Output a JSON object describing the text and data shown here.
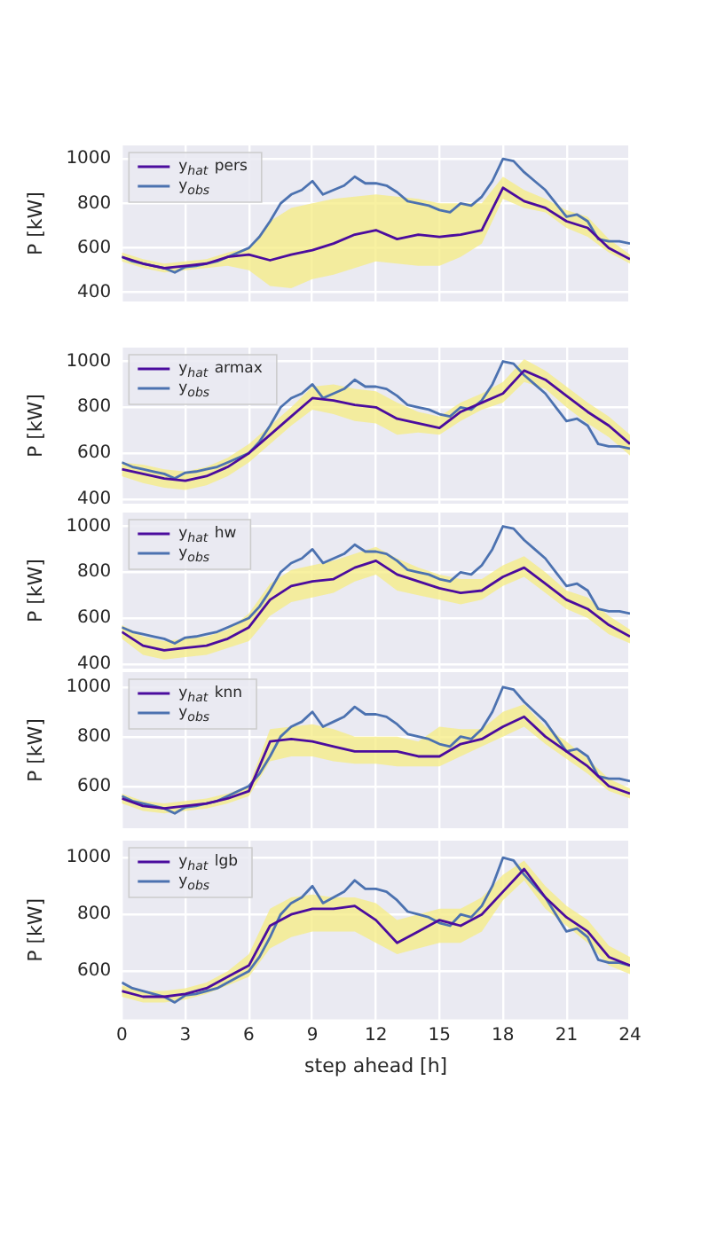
{
  "chart_data": [
    {
      "type": "line",
      "ylabel": "P [kW]",
      "x": [
        0,
        1,
        2,
        3,
        4,
        5,
        6,
        7,
        8,
        9,
        10,
        11,
        12,
        13,
        14,
        15,
        16,
        17,
        18,
        19,
        20,
        21,
        22,
        23,
        24
      ],
      "xlim": [
        0,
        24
      ],
      "xticks": [
        0,
        3,
        6,
        9,
        12,
        15,
        18,
        21,
        24
      ],
      "ylim": [
        360,
        1060
      ],
      "yticks": [
        400,
        600,
        800,
        1000
      ],
      "grid": true,
      "legend": "top left",
      "tick_labels": "y",
      "line_style": "solid",
      "marker": "none",
      "series": [
        {
          "name": "y$_{hat}$ pers",
          "color": "#4b0c9e",
          "values": [
            560,
            530,
            510,
            520,
            530,
            560,
            570,
            545,
            570,
            590,
            620,
            660,
            680,
            640,
            660,
            650,
            660,
            680,
            870,
            810,
            780,
            720,
            690,
            600,
            550
          ],
          "lower": [
            540,
            510,
            490,
            500,
            510,
            520,
            500,
            430,
            420,
            460,
            480,
            510,
            540,
            530,
            520,
            520,
            560,
            620,
            820,
            780,
            760,
            690,
            650,
            580,
            530
          ],
          "upper": [
            580,
            550,
            530,
            540,
            550,
            580,
            600,
            720,
            780,
            800,
            820,
            830,
            840,
            830,
            820,
            800,
            800,
            800,
            920,
            860,
            820,
            770,
            740,
            640,
            570
          ]
        },
        {
          "name": "y$_{obs}$",
          "color": "#4c72b0",
          "x": [
            0,
            0.5,
            1,
            1.5,
            2,
            2.5,
            3,
            3.5,
            4,
            4.5,
            5,
            5.5,
            6,
            6.5,
            7,
            7.5,
            8,
            8.5,
            9,
            9.5,
            10,
            10.5,
            11,
            11.5,
            12,
            12.5,
            13,
            13.5,
            14,
            14.5,
            15,
            15.5,
            16,
            16.5,
            17,
            17.5,
            18,
            18.5,
            19,
            19.5,
            20,
            20.5,
            21,
            21.5,
            22,
            22.5,
            23,
            23.5,
            24
          ],
          "values": [
            560,
            540,
            530,
            520,
            510,
            490,
            515,
            520,
            530,
            540,
            560,
            580,
            600,
            650,
            720,
            800,
            840,
            860,
            900,
            840,
            860,
            880,
            920,
            890,
            890,
            880,
            850,
            810,
            800,
            790,
            770,
            760,
            800,
            790,
            830,
            900,
            1000,
            990,
            940,
            900,
            860,
            800,
            740,
            750,
            720,
            640,
            630,
            630,
            620
          ]
        }
      ]
    },
    {
      "type": "line",
      "ylabel": "P [kW]",
      "x": [
        0,
        1,
        2,
        3,
        4,
        5,
        6,
        7,
        8,
        9,
        10,
        11,
        12,
        13,
        14,
        15,
        16,
        17,
        18,
        19,
        20,
        21,
        22,
        23,
        24
      ],
      "xlim": [
        0,
        24
      ],
      "xticks": [
        0,
        3,
        6,
        9,
        12,
        15,
        18,
        21,
        24
      ],
      "ylim": [
        380,
        1060
      ],
      "yticks": [
        400,
        600,
        800,
        1000
      ],
      "grid": true,
      "legend": "top left",
      "tick_labels": "y",
      "line_style": "solid",
      "marker": "none",
      "series": [
        {
          "name": "y$_{hat}$ armax",
          "color": "#4b0c9e",
          "values": [
            530,
            510,
            490,
            480,
            500,
            540,
            600,
            680,
            760,
            840,
            830,
            810,
            800,
            750,
            730,
            710,
            780,
            820,
            860,
            960,
            920,
            850,
            780,
            720,
            640
          ],
          "lower": [
            500,
            470,
            450,
            440,
            460,
            500,
            560,
            640,
            720,
            790,
            770,
            740,
            730,
            680,
            690,
            680,
            740,
            790,
            820,
            910,
            880,
            800,
            730,
            670,
            590
          ],
          "upper": [
            560,
            550,
            530,
            520,
            540,
            580,
            640,
            720,
            800,
            890,
            900,
            880,
            870,
            820,
            780,
            760,
            820,
            860,
            910,
            1010,
            960,
            890,
            820,
            760,
            680
          ]
        },
        {
          "name": "y$_{obs}$",
          "color": "#4c72b0",
          "x": [
            0,
            0.5,
            1,
            1.5,
            2,
            2.5,
            3,
            3.5,
            4,
            4.5,
            5,
            5.5,
            6,
            6.5,
            7,
            7.5,
            8,
            8.5,
            9,
            9.5,
            10,
            10.5,
            11,
            11.5,
            12,
            12.5,
            13,
            13.5,
            14,
            14.5,
            15,
            15.5,
            16,
            16.5,
            17,
            17.5,
            18,
            18.5,
            19,
            19.5,
            20,
            20.5,
            21,
            21.5,
            22,
            22.5,
            23,
            23.5,
            24
          ],
          "values": [
            560,
            540,
            530,
            520,
            510,
            490,
            515,
            520,
            530,
            540,
            560,
            580,
            600,
            650,
            720,
            800,
            840,
            860,
            900,
            840,
            860,
            880,
            920,
            890,
            890,
            880,
            850,
            810,
            800,
            790,
            770,
            760,
            800,
            790,
            830,
            900,
            1000,
            990,
            940,
            900,
            860,
            800,
            740,
            750,
            720,
            640,
            630,
            630,
            620
          ]
        }
      ]
    },
    {
      "type": "line",
      "ylabel": "P [kW]",
      "x": [
        0,
        1,
        2,
        3,
        4,
        5,
        6,
        7,
        8,
        9,
        10,
        11,
        12,
        13,
        14,
        15,
        16,
        17,
        18,
        19,
        20,
        21,
        22,
        23,
        24
      ],
      "xlim": [
        0,
        24
      ],
      "xticks": [
        0,
        3,
        6,
        9,
        12,
        15,
        18,
        21,
        24
      ],
      "ylim": [
        380,
        1060
      ],
      "yticks": [
        400,
        600,
        800,
        1000
      ],
      "grid": true,
      "legend": "top left",
      "tick_labels": "y",
      "line_style": "solid",
      "marker": "none",
      "series": [
        {
          "name": "y$_{hat}$ hw",
          "color": "#4b0c9e",
          "values": [
            540,
            480,
            460,
            470,
            480,
            510,
            560,
            680,
            740,
            760,
            770,
            820,
            850,
            790,
            760,
            730,
            710,
            720,
            780,
            820,
            750,
            680,
            640,
            570,
            520
          ],
          "lower": [
            510,
            440,
            420,
            430,
            440,
            470,
            500,
            610,
            670,
            690,
            710,
            760,
            790,
            720,
            700,
            680,
            660,
            680,
            740,
            780,
            710,
            640,
            600,
            530,
            490
          ],
          "upper": [
            570,
            520,
            500,
            510,
            520,
            550,
            620,
            750,
            810,
            830,
            850,
            880,
            910,
            860,
            820,
            790,
            770,
            770,
            830,
            870,
            800,
            720,
            690,
            610,
            550
          ]
        },
        {
          "name": "y$_{obs}$",
          "color": "#4c72b0",
          "x": [
            0,
            0.5,
            1,
            1.5,
            2,
            2.5,
            3,
            3.5,
            4,
            4.5,
            5,
            5.5,
            6,
            6.5,
            7,
            7.5,
            8,
            8.5,
            9,
            9.5,
            10,
            10.5,
            11,
            11.5,
            12,
            12.5,
            13,
            13.5,
            14,
            14.5,
            15,
            15.5,
            16,
            16.5,
            17,
            17.5,
            18,
            18.5,
            19,
            19.5,
            20,
            20.5,
            21,
            21.5,
            22,
            22.5,
            23,
            23.5,
            24
          ],
          "values": [
            560,
            540,
            530,
            520,
            510,
            490,
            515,
            520,
            530,
            540,
            560,
            580,
            600,
            650,
            720,
            800,
            840,
            860,
            900,
            840,
            860,
            880,
            920,
            890,
            890,
            880,
            850,
            810,
            800,
            790,
            770,
            760,
            800,
            790,
            830,
            900,
            1000,
            990,
            940,
            900,
            860,
            800,
            740,
            750,
            720,
            640,
            630,
            630,
            620
          ]
        }
      ]
    },
    {
      "type": "line",
      "ylabel": "P [kW]",
      "x": [
        0,
        1,
        2,
        3,
        4,
        5,
        6,
        7,
        8,
        9,
        10,
        11,
        12,
        13,
        14,
        15,
        16,
        17,
        18,
        19,
        20,
        21,
        22,
        23,
        24
      ],
      "xlim": [
        0,
        24
      ],
      "xticks": [
        0,
        3,
        6,
        9,
        12,
        15,
        18,
        21,
        24
      ],
      "ylim": [
        430,
        1060
      ],
      "yticks": [
        600,
        800,
        1000
      ],
      "grid": true,
      "legend": "top left",
      "tick_labels": "y",
      "line_style": "solid",
      "marker": "none",
      "series": [
        {
          "name": "y$_{hat}$ knn",
          "color": "#4b0c9e",
          "values": [
            550,
            520,
            510,
            520,
            530,
            550,
            580,
            780,
            790,
            780,
            760,
            740,
            740,
            740,
            720,
            720,
            770,
            790,
            840,
            880,
            800,
            740,
            680,
            600,
            570
          ],
          "lower": [
            530,
            500,
            490,
            500,
            510,
            530,
            560,
            700,
            720,
            720,
            700,
            690,
            690,
            680,
            680,
            680,
            720,
            760,
            800,
            840,
            770,
            710,
            650,
            580,
            550
          ],
          "upper": [
            570,
            540,
            530,
            540,
            550,
            570,
            600,
            830,
            840,
            850,
            830,
            800,
            800,
            800,
            780,
            840,
            830,
            830,
            900,
            930,
            840,
            780,
            710,
            630,
            590
          ]
        },
        {
          "name": "y$_{obs}$",
          "color": "#4c72b0",
          "x": [
            0,
            0.5,
            1,
            1.5,
            2,
            2.5,
            3,
            3.5,
            4,
            4.5,
            5,
            5.5,
            6,
            6.5,
            7,
            7.5,
            8,
            8.5,
            9,
            9.5,
            10,
            10.5,
            11,
            11.5,
            12,
            12.5,
            13,
            13.5,
            14,
            14.5,
            15,
            15.5,
            16,
            16.5,
            17,
            17.5,
            18,
            18.5,
            19,
            19.5,
            20,
            20.5,
            21,
            21.5,
            22,
            22.5,
            23,
            23.5,
            24
          ],
          "values": [
            560,
            540,
            530,
            520,
            510,
            490,
            515,
            520,
            530,
            540,
            560,
            580,
            600,
            650,
            720,
            800,
            840,
            860,
            900,
            840,
            860,
            880,
            920,
            890,
            890,
            880,
            850,
            810,
            800,
            790,
            770,
            760,
            800,
            790,
            830,
            900,
            1000,
            990,
            940,
            900,
            860,
            800,
            740,
            750,
            720,
            640,
            630,
            630,
            620
          ]
        }
      ]
    },
    {
      "type": "line",
      "ylabel": "P [kW]",
      "xlabel": "step ahead [h]",
      "x": [
        0,
        1,
        2,
        3,
        4,
        5,
        6,
        7,
        8,
        9,
        10,
        11,
        12,
        13,
        14,
        15,
        16,
        17,
        18,
        19,
        20,
        21,
        22,
        23,
        24
      ],
      "xlim": [
        0,
        24
      ],
      "xticks": [
        0,
        3,
        6,
        9,
        12,
        15,
        18,
        21,
        24
      ],
      "ylim": [
        430,
        1060
      ],
      "yticks": [
        600,
        800,
        1000
      ],
      "grid": true,
      "legend": "top left",
      "line_style": "solid",
      "marker": "none",
      "series": [
        {
          "name": "y$_{hat}$ lgb",
          "color": "#4b0c9e",
          "values": [
            530,
            510,
            510,
            520,
            540,
            580,
            620,
            760,
            800,
            820,
            820,
            830,
            780,
            700,
            740,
            780,
            760,
            800,
            880,
            960,
            860,
            790,
            740,
            650,
            620
          ],
          "lower": [
            510,
            490,
            490,
            500,
            520,
            550,
            580,
            680,
            720,
            740,
            740,
            740,
            700,
            660,
            680,
            700,
            700,
            740,
            850,
            920,
            820,
            760,
            700,
            620,
            590
          ],
          "upper": [
            550,
            530,
            530,
            540,
            560,
            600,
            660,
            820,
            860,
            870,
            860,
            860,
            840,
            780,
            800,
            820,
            820,
            860,
            940,
            990,
            900,
            830,
            780,
            690,
            650
          ]
        },
        {
          "name": "y$_{obs}$",
          "color": "#4c72b0",
          "x": [
            0,
            0.5,
            1,
            1.5,
            2,
            2.5,
            3,
            3.5,
            4,
            4.5,
            5,
            5.5,
            6,
            6.5,
            7,
            7.5,
            8,
            8.5,
            9,
            9.5,
            10,
            10.5,
            11,
            11.5,
            12,
            12.5,
            13,
            13.5,
            14,
            14.5,
            15,
            15.5,
            16,
            16.5,
            17,
            17.5,
            18,
            18.5,
            19,
            19.5,
            20,
            20.5,
            21,
            21.5,
            22,
            22.5,
            23,
            23.5,
            24
          ],
          "values": [
            560,
            540,
            530,
            520,
            510,
            490,
            515,
            520,
            530,
            540,
            560,
            580,
            600,
            650,
            720,
            800,
            840,
            860,
            900,
            840,
            860,
            880,
            920,
            890,
            890,
            880,
            850,
            810,
            800,
            790,
            770,
            760,
            800,
            790,
            830,
            900,
            1000,
            990,
            940,
            900,
            860,
            800,
            740,
            750,
            720,
            640,
            630,
            630,
            620
          ]
        }
      ]
    }
  ]
}
